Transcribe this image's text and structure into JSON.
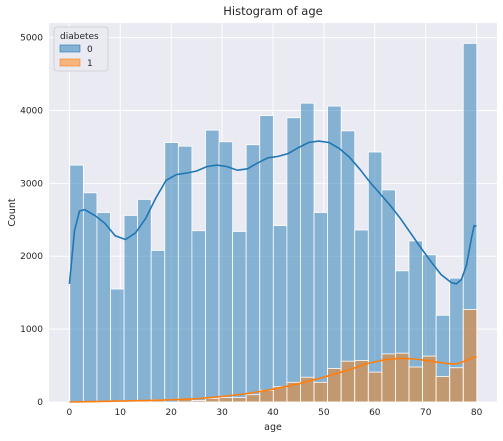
{
  "chart_data": {
    "type": "bar",
    "title": "Histogram of age",
    "xlabel": "age",
    "ylabel": "Count",
    "xlim": [
      -4,
      84
    ],
    "ylim": [
      0,
      5200
    ],
    "xticks": [
      0,
      10,
      20,
      30,
      40,
      50,
      60,
      70,
      80
    ],
    "yticks": [
      0,
      1000,
      2000,
      3000,
      4000,
      5000
    ],
    "grid": true,
    "legend": {
      "title": "diabetes",
      "placement": "top-left"
    },
    "bin_width": 2.67,
    "bin_starts": [
      0.08,
      2.75,
      5.41,
      8.08,
      10.74,
      13.41,
      16.07,
      18.74,
      21.4,
      24.07,
      26.74,
      29.4,
      32.07,
      34.73,
      37.4,
      40.06,
      42.73,
      45.39,
      48.06,
      50.72,
      53.39,
      56.05,
      58.72,
      61.38,
      64.05,
      66.71,
      69.38,
      72.04,
      74.71,
      77.37
    ],
    "series": [
      {
        "name": "0",
        "color": "#1f77b4",
        "values": [
          3250,
          2870,
          2600,
          1550,
          2560,
          2780,
          2080,
          3560,
          3510,
          2350,
          3730,
          3570,
          2340,
          3530,
          3930,
          2420,
          3900,
          4100,
          2600,
          4060,
          3720,
          2360,
          3430,
          2910,
          1800,
          2210,
          2020,
          1190,
          1700,
          4920
        ],
        "kde": [
          [
            0,
            1620
          ],
          [
            1,
            2350
          ],
          [
            2,
            2620
          ],
          [
            3,
            2640
          ],
          [
            5,
            2560
          ],
          [
            7,
            2450
          ],
          [
            9,
            2280
          ],
          [
            11,
            2230
          ],
          [
            13,
            2320
          ],
          [
            15,
            2520
          ],
          [
            17,
            2800
          ],
          [
            19,
            3040
          ],
          [
            21,
            3120
          ],
          [
            23,
            3140
          ],
          [
            25,
            3170
          ],
          [
            27,
            3230
          ],
          [
            29,
            3250
          ],
          [
            31,
            3230
          ],
          [
            33,
            3180
          ],
          [
            35,
            3200
          ],
          [
            37,
            3280
          ],
          [
            39,
            3350
          ],
          [
            41,
            3370
          ],
          [
            43,
            3410
          ],
          [
            45,
            3490
          ],
          [
            47,
            3560
          ],
          [
            49,
            3580
          ],
          [
            51,
            3560
          ],
          [
            53,
            3480
          ],
          [
            55,
            3360
          ],
          [
            57,
            3200
          ],
          [
            59,
            3020
          ],
          [
            61,
            2860
          ],
          [
            63,
            2700
          ],
          [
            65,
            2520
          ],
          [
            67,
            2320
          ],
          [
            69,
            2120
          ],
          [
            71,
            1930
          ],
          [
            73,
            1750
          ],
          [
            75,
            1640
          ],
          [
            76,
            1620
          ],
          [
            77,
            1680
          ],
          [
            78,
            1880
          ],
          [
            79,
            2250
          ],
          [
            79.5,
            2420
          ],
          [
            80,
            2410
          ]
        ]
      },
      {
        "name": "1",
        "color": "#ff7f0e",
        "values": [
          0,
          0,
          0,
          10,
          0,
          20,
          30,
          0,
          40,
          20,
          50,
          60,
          60,
          100,
          160,
          210,
          270,
          340,
          270,
          460,
          560,
          570,
          410,
          660,
          670,
          480,
          630,
          350,
          470,
          1270
        ],
        "kde": [
          [
            0,
            0
          ],
          [
            5,
            5
          ],
          [
            10,
            12
          ],
          [
            15,
            20
          ],
          [
            20,
            30
          ],
          [
            25,
            45
          ],
          [
            30,
            75
          ],
          [
            35,
            115
          ],
          [
            40,
            175
          ],
          [
            45,
            250
          ],
          [
            50,
            340
          ],
          [
            55,
            440
          ],
          [
            58,
            520
          ],
          [
            62,
            580
          ],
          [
            65,
            600
          ],
          [
            68,
            590
          ],
          [
            71,
            560
          ],
          [
            74,
            530
          ],
          [
            76,
            520
          ],
          [
            78,
            570
          ],
          [
            79.5,
            620
          ],
          [
            80,
            620
          ]
        ]
      }
    ]
  }
}
